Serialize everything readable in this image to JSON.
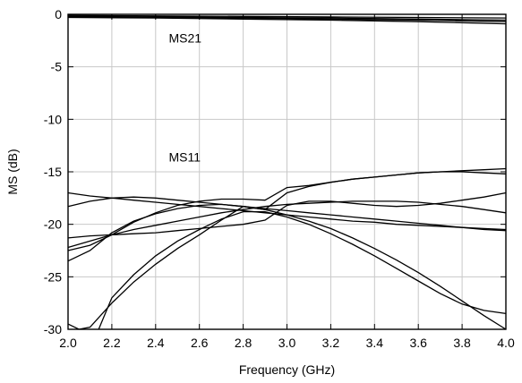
{
  "chart_data": {
    "type": "line",
    "title": "",
    "xlabel": "Frequency (GHz)",
    "ylabel": "MS (dB)",
    "xlim": [
      2.0,
      4.0
    ],
    "ylim": [
      -30,
      0
    ],
    "xticks": [
      "2.0",
      "2.2",
      "2.4",
      "2.6",
      "2.8",
      "3.0",
      "3.2",
      "3.4",
      "3.6",
      "3.8",
      "4.0"
    ],
    "yticks": [
      "0",
      "-5",
      "-10",
      "-15",
      "-20",
      "-25",
      "-30"
    ],
    "grid": true,
    "annotations": [
      {
        "text": "MS21",
        "x": 2.46,
        "y": -2.7
      },
      {
        "text": "MS11",
        "x": 2.46,
        "y": -14.0
      }
    ],
    "series": [
      {
        "x": [
          2.0,
          2.4,
          2.8,
          3.2,
          3.6,
          4.0
        ],
        "y": [
          -0.1,
          -0.15,
          -0.2,
          -0.25,
          -0.3,
          -0.35
        ]
      },
      {
        "x": [
          2.0,
          2.4,
          2.8,
          3.2,
          3.6,
          4.0
        ],
        "y": [
          -0.2,
          -0.25,
          -0.3,
          -0.35,
          -0.45,
          -0.55
        ]
      },
      {
        "x": [
          2.0,
          2.4,
          2.8,
          3.2,
          3.6,
          4.0
        ],
        "y": [
          -0.25,
          -0.3,
          -0.35,
          -0.45,
          -0.55,
          -0.7
        ]
      },
      {
        "x": [
          2.0,
          2.4,
          2.8,
          3.2,
          3.6,
          4.0
        ],
        "y": [
          -0.3,
          -0.35,
          -0.45,
          -0.55,
          -0.7,
          -0.9
        ]
      },
      {
        "x": [
          2.0,
          2.1,
          2.2,
          2.3,
          2.4,
          2.5,
          2.6,
          2.7,
          2.8,
          2.9,
          3.0,
          3.1,
          3.2,
          3.3,
          3.4,
          3.5,
          3.6,
          3.7,
          3.8,
          3.9,
          4.0
        ],
        "y": [
          -22.2,
          -21.6,
          -21.0,
          -20.5,
          -20.1,
          -19.7,
          -19.3,
          -18.9,
          -18.6,
          -18.3,
          -18.1,
          -18.0,
          -17.9,
          -17.8,
          -17.8,
          -17.8,
          -17.9,
          -18.1,
          -18.3,
          -18.6,
          -18.9
        ]
      },
      {
        "x": [
          2.0,
          2.1,
          2.2,
          2.3,
          2.4,
          2.5,
          2.6,
          2.7,
          2.8,
          2.9,
          3.0,
          3.1,
          3.2,
          3.3,
          3.4,
          3.5,
          3.6,
          3.7,
          3.8,
          3.9,
          4.0
        ],
        "y": [
          -17.0,
          -17.3,
          -17.5,
          -17.7,
          -17.9,
          -18.1,
          -18.3,
          -18.5,
          -18.7,
          -18.9,
          -19.1,
          -19.3,
          -19.5,
          -19.7,
          -19.8,
          -20.0,
          -20.1,
          -20.2,
          -20.3,
          -20.4,
          -20.5
        ]
      },
      {
        "x": [
          2.0,
          2.1,
          2.2,
          2.3,
          2.4,
          2.5,
          2.6,
          2.7,
          2.8,
          2.9,
          3.0,
          3.1,
          3.2,
          3.3,
          3.4,
          3.5,
          3.6,
          3.7,
          3.8,
          3.9,
          4.0
        ],
        "y": [
          -18.3,
          -17.8,
          -17.5,
          -17.4,
          -17.5,
          -17.7,
          -17.9,
          -18.1,
          -18.3,
          -18.5,
          -18.7,
          -18.9,
          -19.1,
          -19.3,
          -19.5,
          -19.7,
          -19.9,
          -20.1,
          -20.3,
          -20.5,
          -20.6
        ]
      },
      {
        "x": [
          2.0,
          2.1,
          2.2,
          2.3,
          2.4,
          2.5,
          2.6,
          2.7,
          2.8,
          2.9,
          3.0,
          3.1,
          3.2,
          3.3,
          3.4,
          3.5,
          3.6,
          3.7,
          3.8,
          3.9,
          4.0
        ],
        "y": [
          -21.3,
          -21.1,
          -21.0,
          -20.9,
          -20.8,
          -20.6,
          -20.4,
          -20.2,
          -20.0,
          -19.6,
          -18.2,
          -17.8,
          -17.8,
          -18.0,
          -18.2,
          -18.3,
          -18.2,
          -18.0,
          -17.7,
          -17.4,
          -17.0
        ]
      },
      {
        "x": [
          2.0,
          2.1,
          2.2,
          2.3,
          2.4,
          2.5,
          2.6,
          2.7,
          2.8,
          2.9,
          3.0,
          3.1,
          3.2,
          3.3,
          3.4,
          3.5,
          3.6,
          3.7,
          3.8,
          3.9,
          4.0
        ],
        "y": [
          -23.5,
          -22.5,
          -20.8,
          -19.7,
          -19.0,
          -18.5,
          -18.2,
          -18.1,
          -18.3,
          -18.6,
          -17.0,
          -16.4,
          -16.0,
          -15.7,
          -15.5,
          -15.3,
          -15.1,
          -15.0,
          -15.0,
          -15.1,
          -15.2
        ]
      },
      {
        "x": [
          2.0,
          2.1,
          2.2,
          2.3,
          2.4,
          2.5,
          2.6,
          2.7,
          2.8,
          2.9,
          3.0,
          3.1,
          3.2,
          3.3,
          3.4,
          3.5,
          3.6,
          3.7,
          3.8,
          3.9,
          4.0
        ],
        "y": [
          -22.5,
          -22.0,
          -21.0,
          -19.8,
          -18.9,
          -18.2,
          -17.8,
          -17.6,
          -17.6,
          -17.7,
          -16.5,
          -16.3,
          -16.0,
          -15.7,
          -15.5,
          -15.3,
          -15.1,
          -15.0,
          -14.9,
          -14.8,
          -14.7
        ]
      },
      {
        "x": [
          2.0,
          2.05,
          2.1,
          2.2,
          2.3,
          2.4,
          2.5,
          2.6,
          2.7,
          2.8,
          2.9,
          3.0,
          3.1,
          3.2,
          3.3,
          3.4,
          3.5,
          3.6,
          3.7,
          3.8,
          3.9,
          4.0
        ],
        "y": [
          -29.5,
          -30.0,
          -29.8,
          -27.5,
          -25.5,
          -23.8,
          -22.3,
          -21.0,
          -19.6,
          -18.3,
          -18.6,
          -19.1,
          -19.7,
          -20.4,
          -21.3,
          -22.3,
          -23.4,
          -24.6,
          -25.9,
          -27.3,
          -28.7,
          -30.0
        ]
      },
      {
        "x": [
          2.14,
          2.2,
          2.3,
          2.4,
          2.5,
          2.6,
          2.7,
          2.8,
          2.9,
          3.0,
          3.1,
          3.2,
          3.3,
          3.4,
          3.5,
          3.6,
          3.7,
          3.8,
          3.9,
          4.0
        ],
        "y": [
          -30.0,
          -27.0,
          -24.8,
          -23.0,
          -21.6,
          -20.5,
          -19.5,
          -18.8,
          -18.8,
          -19.3,
          -20.0,
          -20.9,
          -21.9,
          -23.0,
          -24.2,
          -25.4,
          -26.6,
          -27.6,
          -28.2,
          -28.5
        ]
      }
    ]
  }
}
